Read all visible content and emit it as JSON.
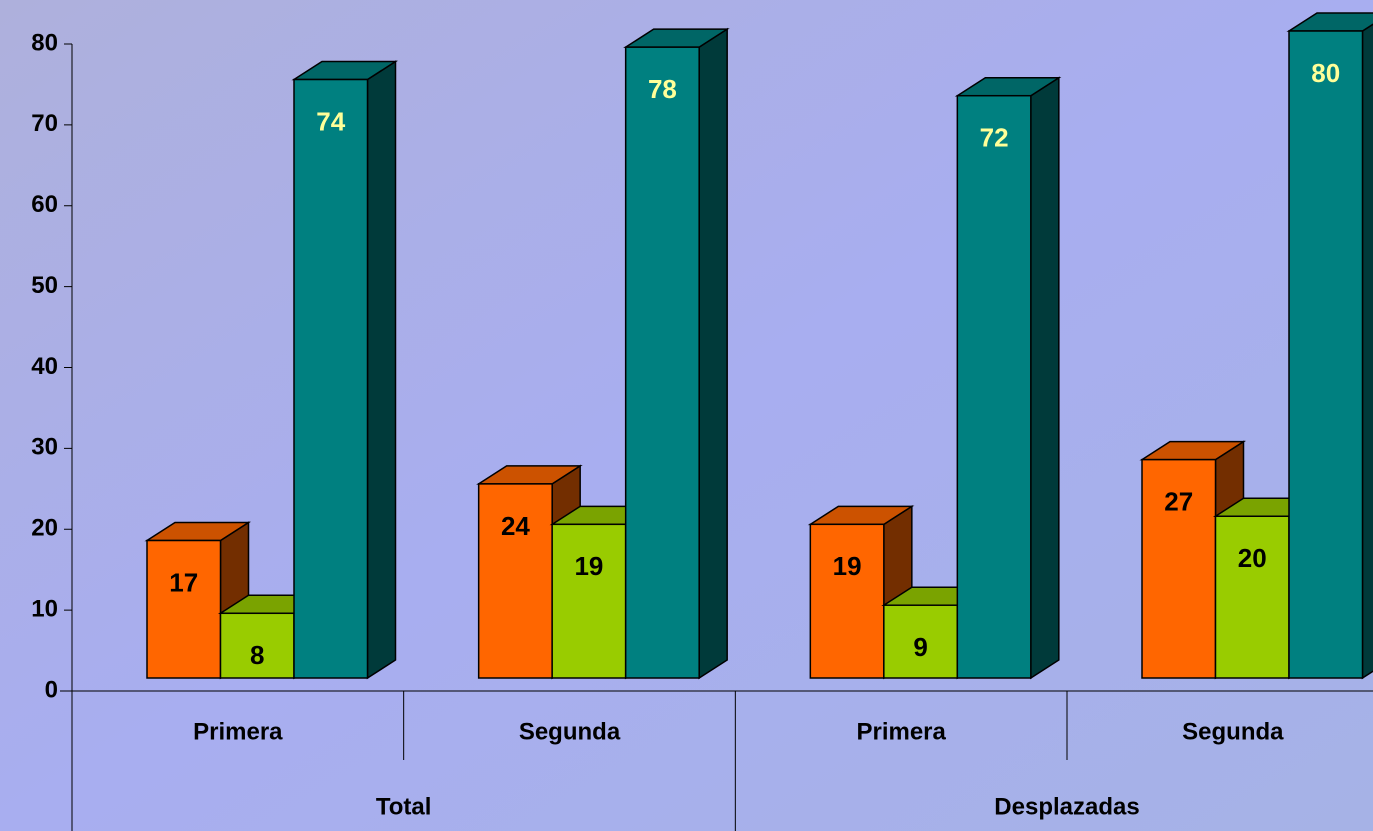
{
  "chart_data": {
    "type": "bar3d",
    "categories": [
      "Primera",
      "Segunda",
      "Primera",
      "Segunda"
    ],
    "category_groups": [
      "Total",
      "Desplazadas"
    ],
    "series": [
      {
        "color": "#ff6600",
        "label_color": "#000000",
        "values": [
          17,
          24,
          19,
          27
        ]
      },
      {
        "color": "#99cc00",
        "label_color": "#000000",
        "values": [
          8,
          19,
          9,
          20
        ]
      },
      {
        "color": "#008080",
        "label_color": "#ffff99",
        "values": [
          74,
          78,
          72,
          80
        ]
      }
    ],
    "ylim": [
      0,
      80
    ],
    "yticks": [
      0,
      10,
      20,
      30,
      40,
      50,
      60,
      70,
      80
    ]
  }
}
